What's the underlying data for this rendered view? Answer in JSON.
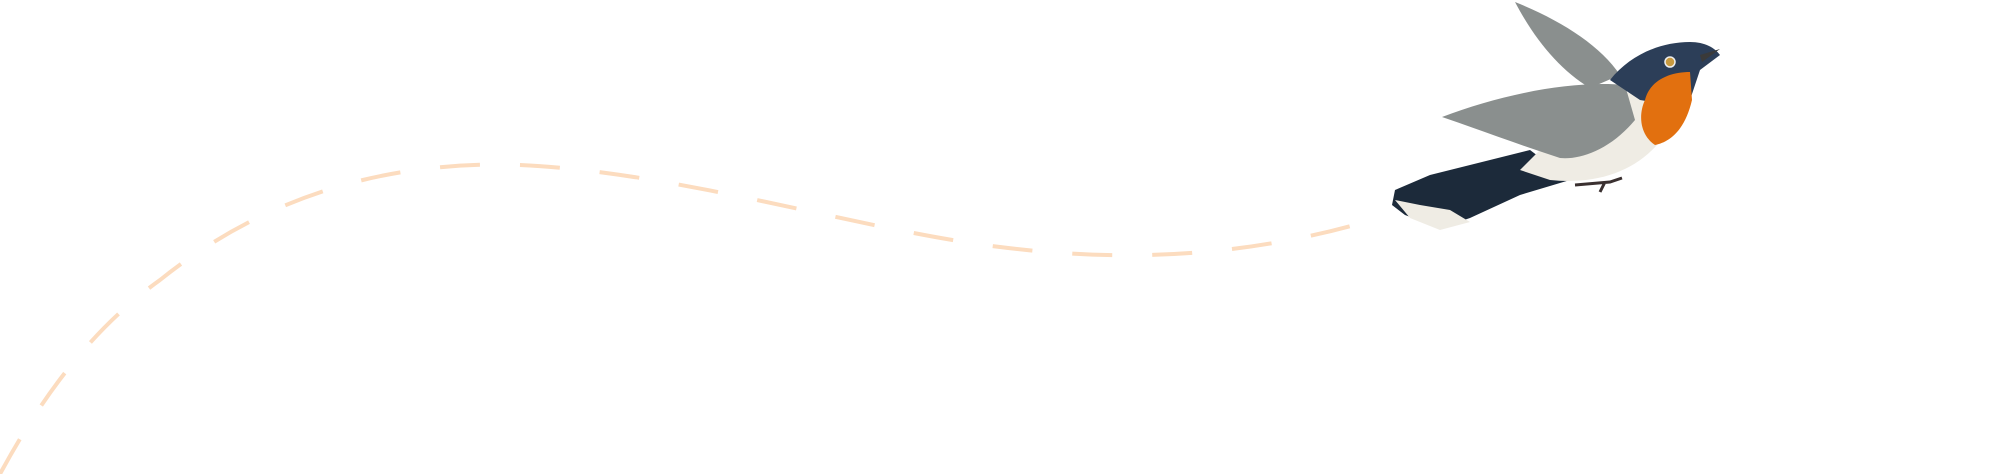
{
  "illustration": {
    "subject": "bird-in-flight",
    "colors": {
      "background": "#ffffff",
      "flight_path": "#fcdcbf",
      "bird_head": "#2c3e58",
      "bird_throat": "#e2700f",
      "bird_wing": "#8a8f8e",
      "bird_belly": "#efece4",
      "bird_tail": "#1c2a3a"
    },
    "flight_path_style": "dashed"
  }
}
